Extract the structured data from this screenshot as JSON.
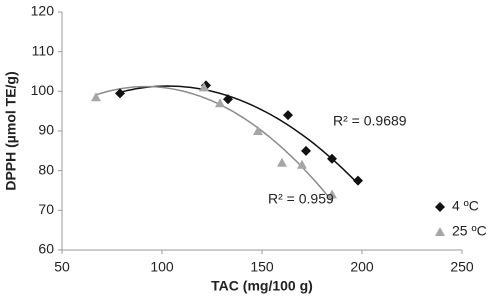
{
  "chart_data": {
    "type": "scatter",
    "xlabel": "TAC (mg/100 g)",
    "ylabel": "DPPH (µmol TE/g)",
    "xlim": [
      50,
      250
    ],
    "xticks": [
      50,
      100,
      150,
      200,
      250
    ],
    "ylim": [
      60,
      120
    ],
    "yticks": [
      60,
      70,
      80,
      90,
      100,
      110,
      120
    ],
    "grid": false,
    "legend": "lower right",
    "series": [
      {
        "name": "4 ºC",
        "color": "#111111",
        "marker": "diamond",
        "trendline_color": "#111111",
        "r2_label": "R² = 0.9689",
        "x": [
          79,
          122,
          133,
          163,
          172,
          185,
          198
        ],
        "values": [
          99.5,
          101.5,
          98,
          94,
          85,
          83,
          77.5
        ]
      },
      {
        "name": "25 ºC",
        "color": "#a6a6a6",
        "marker": "triangle",
        "trendline_color": "#8c8c8c",
        "r2_label": "R² = 0.959",
        "x": [
          67,
          121,
          129,
          148,
          160,
          170,
          185
        ],
        "values": [
          98.5,
          101,
          97,
          90,
          82,
          81.5,
          74
        ]
      }
    ]
  }
}
